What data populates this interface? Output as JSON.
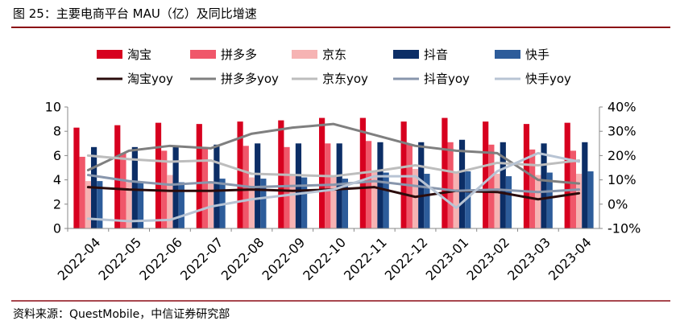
{
  "figure": {
    "title": "图 25：主要电商平台 MAU（亿）及同比增速",
    "source": "资料来源：QuestMobile，中信证券研究部"
  },
  "chart_data": {
    "type": "bar",
    "categories": [
      "2022-04",
      "2022-05",
      "2022-06",
      "2022-07",
      "2022-08",
      "2022-09",
      "2022-10",
      "2022-11",
      "2022-12",
      "2023-01",
      "2023-02",
      "2023-03",
      "2023-04"
    ],
    "left_axis": {
      "ylim": [
        0,
        10
      ],
      "ticks": [
        "0",
        "2",
        "4",
        "6",
        "8",
        "10"
      ]
    },
    "right_axis": {
      "ylim": [
        -10,
        40
      ],
      "unit": "%",
      "ticks": [
        "-10%",
        "0%",
        "10%",
        "20%",
        "30%",
        "40%"
      ]
    },
    "series": [
      {
        "name": "淘宝",
        "type": "bar",
        "color": "#d7001f",
        "values": [
          8.3,
          8.5,
          8.7,
          8.6,
          8.8,
          8.9,
          9.1,
          9.1,
          8.8,
          9.1,
          8.8,
          8.6,
          8.7
        ]
      },
      {
        "name": "拼多多",
        "type": "bar",
        "color": "#f0576a",
        "values": [
          5.9,
          6.2,
          6.4,
          6.6,
          6.8,
          6.7,
          7.0,
          7.2,
          6.9,
          7.1,
          6.9,
          6.5,
          6.4
        ]
      },
      {
        "name": "京东",
        "type": "bar",
        "color": "#f6b3b3",
        "values": [
          3.9,
          3.8,
          4.4,
          3.9,
          4.2,
          4.4,
          4.3,
          4.7,
          4.9,
          4.6,
          4.5,
          4.4,
          4.5
        ]
      },
      {
        "name": "抖音",
        "type": "bar",
        "color": "#0c2e66",
        "values": [
          6.7,
          6.7,
          6.7,
          6.9,
          7.0,
          7.0,
          7.0,
          7.1,
          7.1,
          7.3,
          7.1,
          7.0,
          7.1
        ]
      },
      {
        "name": "快手",
        "type": "bar",
        "color": "#2d5c9a",
        "values": [
          3.9,
          3.8,
          3.8,
          4.1,
          4.1,
          4.2,
          4.1,
          4.6,
          4.5,
          4.7,
          4.3,
          4.6,
          4.7
        ]
      },
      {
        "name": "淘宝yoy",
        "type": "line",
        "axis": "right",
        "color": "#2b0c0c",
        "values": [
          7.0,
          6.0,
          5.5,
          5.5,
          6.0,
          5.5,
          6.0,
          7.0,
          3.0,
          5.5,
          5.0,
          2.0,
          4.5
        ]
      },
      {
        "name": "拼多多yoy",
        "type": "line",
        "axis": "right",
        "color": "#7f7f7f",
        "values": [
          14.0,
          22.0,
          24.0,
          23.0,
          29.0,
          31.5,
          33.0,
          28.5,
          24.0,
          22.0,
          21.0,
          10.0,
          8.5
        ]
      },
      {
        "name": "京东yoy",
        "type": "line",
        "axis": "right",
        "color": "#bdbdbd",
        "values": [
          20.0,
          18.5,
          17.5,
          18.0,
          12.5,
          12.0,
          11.5,
          13.5,
          16.0,
          13.0,
          17.0,
          16.0,
          18.0
        ]
      },
      {
        "name": "抖音yoy",
        "type": "line",
        "axis": "right",
        "color": "#8896ac",
        "values": [
          12.0,
          9.5,
          8.0,
          9.0,
          7.0,
          7.5,
          8.0,
          9.5,
          7.5,
          5.5,
          6.0,
          5.0,
          6.0
        ]
      },
      {
        "name": "快手yoy",
        "type": "line",
        "axis": "right",
        "color": "#b8c4d4",
        "values": [
          -6.0,
          -7.0,
          -6.5,
          -1.0,
          2.0,
          4.0,
          6.0,
          11.5,
          11.5,
          -1.5,
          13.5,
          21.0,
          17.5
        ]
      }
    ],
    "legend_placement": "top",
    "grid": false
  }
}
